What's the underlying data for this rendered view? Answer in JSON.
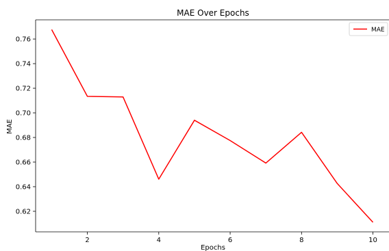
{
  "chart_data": {
    "type": "line",
    "title": "MAE Over Epochs",
    "xlabel": "Epochs",
    "ylabel": "MAE",
    "x": [
      1,
      2,
      3,
      4,
      5,
      6,
      7,
      8,
      9,
      10
    ],
    "series": [
      {
        "name": "MAE",
        "color": "#ff0000",
        "values": [
          0.7677,
          0.7134,
          0.7129,
          0.6461,
          0.694,
          0.6775,
          0.6592,
          0.6842,
          0.6426,
          0.6111
        ]
      }
    ],
    "xlim": [
      0.55,
      10.45
    ],
    "ylim": [
      0.6033,
      0.7756
    ],
    "xticks": [
      2,
      4,
      6,
      8,
      10
    ],
    "yticks": [
      0.62,
      0.64,
      0.66,
      0.68,
      0.7,
      0.72,
      0.74,
      0.76
    ],
    "ytick_labels": [
      "0.62",
      "0.64",
      "0.66",
      "0.68",
      "0.70",
      "0.72",
      "0.74",
      "0.76"
    ],
    "grid": false,
    "legend_position": "top-right"
  }
}
